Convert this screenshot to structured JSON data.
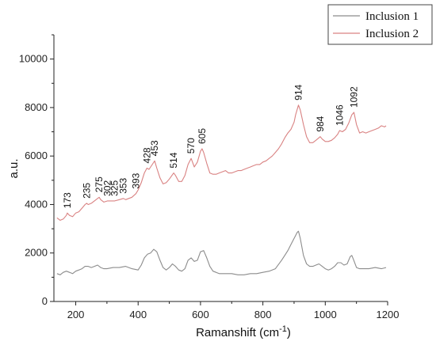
{
  "chart_data": {
    "type": "line",
    "xlabel": "Ramanshift (cm",
    "xlabel_sup": "-1",
    "xlabel_close": ")",
    "ylabel": "a.u.",
    "xlim": [
      130,
      1200
    ],
    "ylim": [
      0,
      11000
    ],
    "xticks": [
      200,
      400,
      600,
      800,
      1000,
      1200
    ],
    "yticks": [
      0,
      2000,
      4000,
      6000,
      8000,
      10000
    ],
    "xtick_labels": [
      "200",
      "400",
      "600",
      "800",
      "1000",
      "1200"
    ],
    "ytick_labels": [
      "0",
      "2000",
      "4000",
      "6000",
      "8000",
      "10000"
    ],
    "grid": false,
    "legend_position": "top-right",
    "series": [
      {
        "name": "Inclusion 1",
        "color": "#8c8c8c",
        "x": [
          140,
          150,
          160,
          170,
          180,
          190,
          200,
          210,
          220,
          230,
          240,
          250,
          260,
          270,
          280,
          290,
          300,
          320,
          340,
          360,
          380,
          400,
          410,
          420,
          430,
          440,
          450,
          460,
          470,
          480,
          490,
          500,
          510,
          520,
          530,
          540,
          550,
          560,
          570,
          580,
          590,
          600,
          610,
          620,
          630,
          640,
          650,
          660,
          680,
          700,
          720,
          740,
          760,
          780,
          800,
          820,
          840,
          860,
          870,
          880,
          890,
          900,
          910,
          914,
          920,
          930,
          940,
          950,
          960,
          970,
          980,
          990,
          1000,
          1010,
          1020,
          1030,
          1040,
          1050,
          1060,
          1070,
          1080,
          1085,
          1090,
          1100,
          1110,
          1120,
          1140,
          1160,
          1180,
          1195
        ],
        "y": [
          1150,
          1100,
          1200,
          1250,
          1200,
          1150,
          1250,
          1300,
          1350,
          1450,
          1450,
          1400,
          1450,
          1500,
          1400,
          1350,
          1350,
          1400,
          1400,
          1450,
          1350,
          1300,
          1500,
          1800,
          1950,
          2000,
          2150,
          2050,
          1700,
          1400,
          1300,
          1400,
          1550,
          1450,
          1300,
          1250,
          1350,
          1700,
          1800,
          1650,
          1700,
          2050,
          2100,
          1800,
          1450,
          1250,
          1200,
          1150,
          1150,
          1150,
          1100,
          1100,
          1150,
          1150,
          1200,
          1250,
          1350,
          1700,
          1900,
          2100,
          2350,
          2600,
          2850,
          2900,
          2600,
          1900,
          1550,
          1450,
          1450,
          1500,
          1550,
          1450,
          1350,
          1300,
          1350,
          1450,
          1600,
          1600,
          1500,
          1550,
          1850,
          1900,
          1750,
          1400,
          1350,
          1350,
          1350,
          1400,
          1350,
          1400
        ]
      },
      {
        "name": "Inclusion 2",
        "color": "#d98282",
        "x": [
          140,
          150,
          160,
          170,
          173,
          180,
          190,
          200,
          210,
          220,
          230,
          235,
          240,
          250,
          260,
          270,
          275,
          280,
          290,
          302,
          310,
          325,
          340,
          353,
          360,
          370,
          380,
          393,
          400,
          410,
          420,
          428,
          435,
          440,
          453,
          460,
          470,
          480,
          490,
          500,
          514,
          520,
          530,
          540,
          550,
          560,
          570,
          580,
          590,
          600,
          605,
          610,
          620,
          630,
          640,
          650,
          660,
          670,
          680,
          690,
          700,
          710,
          720,
          730,
          740,
          750,
          760,
          770,
          780,
          790,
          800,
          810,
          820,
          830,
          840,
          850,
          860,
          870,
          880,
          890,
          900,
          905,
          914,
          920,
          930,
          940,
          950,
          960,
          970,
          984,
          990,
          1000,
          1010,
          1020,
          1030,
          1040,
          1046,
          1055,
          1065,
          1075,
          1085,
          1092,
          1100,
          1110,
          1120,
          1130,
          1140,
          1150,
          1160,
          1170,
          1180,
          1190,
          1195
        ],
        "y": [
          3450,
          3350,
          3400,
          3550,
          3650,
          3550,
          3500,
          3650,
          3700,
          3850,
          4000,
          4050,
          4000,
          4050,
          4150,
          4250,
          4300,
          4200,
          4100,
          4150,
          4150,
          4150,
          4200,
          4250,
          4200,
          4250,
          4300,
          4450,
          4600,
          4900,
          5300,
          5500,
          5450,
          5550,
          5800,
          5500,
          5100,
          4850,
          4900,
          5050,
          5300,
          5200,
          4950,
          4950,
          5200,
          5650,
          5900,
          5550,
          5750,
          6200,
          6300,
          6150,
          5700,
          5300,
          5250,
          5250,
          5300,
          5350,
          5400,
          5300,
          5300,
          5350,
          5400,
          5400,
          5450,
          5500,
          5550,
          5600,
          5650,
          5650,
          5750,
          5800,
          5900,
          6000,
          6150,
          6300,
          6500,
          6750,
          6950,
          7100,
          7400,
          7700,
          8100,
          7900,
          7300,
          6800,
          6550,
          6550,
          6650,
          6800,
          6700,
          6600,
          6600,
          6650,
          6750,
          6900,
          7050,
          7000,
          7100,
          7350,
          7700,
          7800,
          7300,
          6950,
          7000,
          6950,
          7000,
          7050,
          7100,
          7150,
          7250,
          7200,
          7250
        ]
      }
    ],
    "annotations": [
      {
        "text": "173",
        "x": 173,
        "y": 3650
      },
      {
        "text": "235",
        "x": 235,
        "y": 4050
      },
      {
        "text": "275",
        "x": 275,
        "y": 4300
      },
      {
        "text": "302",
        "x": 302,
        "y": 4150
      },
      {
        "text": "325",
        "x": 325,
        "y": 4150
      },
      {
        "text": "353",
        "x": 353,
        "y": 4250
      },
      {
        "text": "393",
        "x": 393,
        "y": 4450
      },
      {
        "text": "428",
        "x": 428,
        "y": 5500
      },
      {
        "text": "453",
        "x": 453,
        "y": 5800
      },
      {
        "text": "514",
        "x": 514,
        "y": 5300
      },
      {
        "text": "570",
        "x": 570,
        "y": 5900
      },
      {
        "text": "605",
        "x": 605,
        "y": 6300
      },
      {
        "text": "914",
        "x": 914,
        "y": 8100
      },
      {
        "text": "984",
        "x": 984,
        "y": 6800
      },
      {
        "text": "1046",
        "x": 1046,
        "y": 7050
      },
      {
        "text": "1092",
        "x": 1092,
        "y": 7800
      }
    ]
  }
}
